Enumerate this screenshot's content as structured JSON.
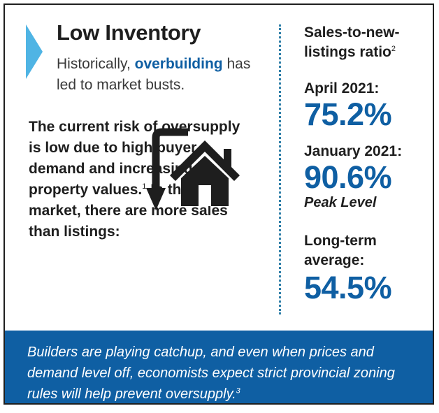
{
  "header": {
    "title": "Low Inventory",
    "subtitle_pre": "Historically, ",
    "subtitle_highlight": "overbuilding",
    "subtitle_post": " has led to market busts."
  },
  "body": {
    "text": "The current risk of oversupply is low due to high buyer demand and increasing property values.",
    "text_superscript": "1",
    "text_after": " In this market, there are more sales than listings:"
  },
  "icons": {
    "main": "house-with-down-arrow-icon",
    "marker": "chevron-right-icon"
  },
  "ratio": {
    "title": "Sales-to-new-listings ratio",
    "title_superscript": "2",
    "stats": [
      {
        "label": "April 2021:",
        "value": "75.2%",
        "note": ""
      },
      {
        "label": "January 2021:",
        "value": "90.6%",
        "note": "Peak Level"
      },
      {
        "label": "Long-term average:",
        "value": "54.5%",
        "note": ""
      }
    ]
  },
  "footer": {
    "text": "Builders are playing catchup, and even when prices and demand level off, economists expect strict provincial zoning rules will help prevent oversupply.",
    "superscript": "3"
  },
  "colors": {
    "accent_blue": "#0f5fa3",
    "chevron_blue": "#4fb4e4",
    "divider": "#2f7fa8",
    "text_dark": "#1e1e1e"
  }
}
